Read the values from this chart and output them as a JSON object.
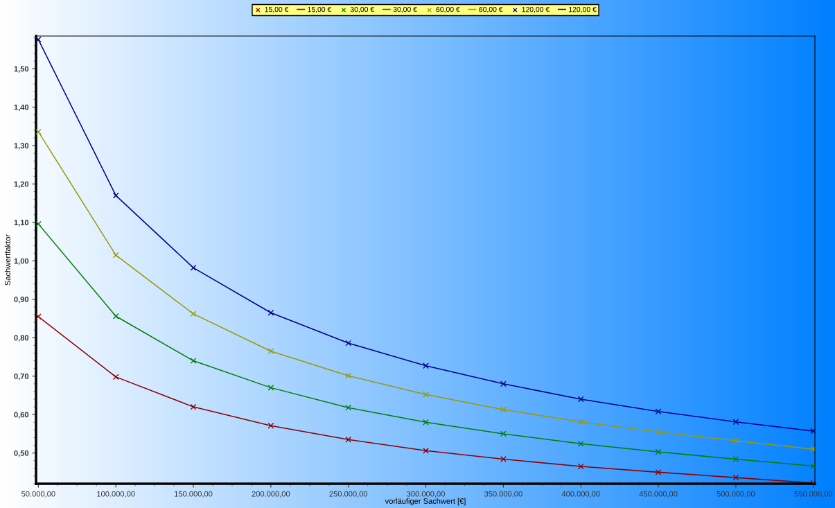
{
  "chart_data": {
    "type": "line",
    "xlabel": "vorläufiger Sachwert [€]",
    "ylabel": "Sachwertfaktor",
    "x": [
      50000,
      100000,
      150000,
      200000,
      250000,
      300000,
      350000,
      400000,
      450000,
      500000,
      550000
    ],
    "xlim": [
      48500,
      551000
    ],
    "ylim": [
      0.42,
      1.585
    ],
    "xticks": [
      {
        "value": 50000,
        "label": "50.000,00"
      },
      {
        "value": 100000,
        "label": "100.000,00"
      },
      {
        "value": 150000,
        "label": "150.000,00"
      },
      {
        "value": 200000,
        "label": "200.000,00"
      },
      {
        "value": 250000,
        "label": "250.000,00"
      },
      {
        "value": 300000,
        "label": "300.000,00"
      },
      {
        "value": 350000,
        "label": "350.000,00"
      },
      {
        "value": 400000,
        "label": "400.000,00"
      },
      {
        "value": 450000,
        "label": "450.000,00"
      },
      {
        "value": 500000,
        "label": "500.000,00"
      },
      {
        "value": 550000,
        "label": "550.000,00"
      }
    ],
    "yticks": [
      {
        "value": 0.5,
        "label": "0,50"
      },
      {
        "value": 0.6,
        "label": "0,60"
      },
      {
        "value": 0.7,
        "label": "0,70"
      },
      {
        "value": 0.8,
        "label": "0,80"
      },
      {
        "value": 0.9,
        "label": "0,90"
      },
      {
        "value": 1.0,
        "label": "1,00"
      },
      {
        "value": 1.1,
        "label": "1,10"
      },
      {
        "value": 1.2,
        "label": "1,20"
      },
      {
        "value": 1.3,
        "label": "1,30"
      },
      {
        "value": 1.4,
        "label": "1,40"
      },
      {
        "value": 1.5,
        "label": "1,50"
      }
    ],
    "grid": false,
    "legend": "top",
    "series": [
      {
        "name": "15,00 €",
        "type": "scatter",
        "marker": "cross",
        "color": "#8b0000",
        "values": [
          0.855,
          0.698,
          0.62,
          0.571,
          0.535,
          0.506,
          0.484,
          0.465,
          0.45,
          0.436,
          0.422
        ]
      },
      {
        "name": "15,00 €",
        "marker": "none",
        "color": "#8b0000",
        "values": [
          0.855,
          0.698,
          0.62,
          0.571,
          0.535,
          0.506,
          0.484,
          0.465,
          0.45,
          0.436,
          0.422
        ]
      },
      {
        "name": "30,00 €",
        "type": "scatter",
        "marker": "cross",
        "color": "#008000",
        "values": [
          1.096,
          0.856,
          0.74,
          0.67,
          0.618,
          0.58,
          0.55,
          0.524,
          0.503,
          0.484,
          0.466
        ]
      },
      {
        "name": "30,00 €",
        "marker": "none",
        "color": "#008000",
        "values": [
          1.096,
          0.856,
          0.74,
          0.67,
          0.618,
          0.58,
          0.55,
          0.524,
          0.503,
          0.484,
          0.466
        ]
      },
      {
        "name": "60,00 €",
        "type": "scatter",
        "marker": "cross",
        "color": "#9a9a00",
        "values": [
          1.336,
          1.015,
          0.862,
          0.765,
          0.701,
          0.652,
          0.613,
          0.581,
          0.555,
          0.532,
          0.51
        ]
      },
      {
        "name": "60,00 €",
        "marker": "none",
        "color": "#9a9a00",
        "values": [
          1.336,
          1.015,
          0.862,
          0.765,
          0.701,
          0.652,
          0.613,
          0.581,
          0.555,
          0.532,
          0.51
        ]
      },
      {
        "name": "120,00 €",
        "type": "scatter",
        "marker": "cross",
        "color": "#00008b",
        "values": [
          1.576,
          1.17,
          0.982,
          0.865,
          0.786,
          0.727,
          0.68,
          0.64,
          0.608,
          0.581,
          0.557
        ]
      },
      {
        "name": "120,00 €",
        "marker": "none",
        "color": "#00008b",
        "values": [
          1.576,
          1.17,
          0.982,
          0.865,
          0.786,
          0.727,
          0.68,
          0.64,
          0.608,
          0.581,
          0.557
        ]
      }
    ]
  }
}
